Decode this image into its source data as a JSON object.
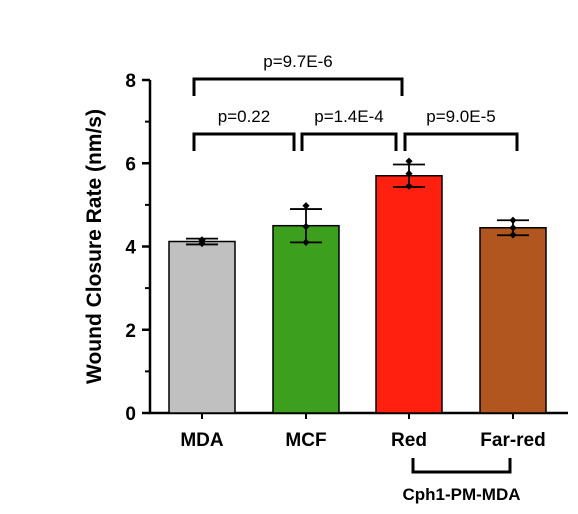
{
  "chart_data": {
    "type": "bar",
    "categories": [
      "MDA",
      "MCF",
      "Red",
      "Far-red"
    ],
    "values": [
      4.12,
      4.5,
      5.7,
      4.45
    ],
    "errors": [
      0.07,
      0.4,
      0.27,
      0.18
    ],
    "points": [
      [
        4.07,
        4.12,
        4.16
      ],
      [
        4.1,
        4.48,
        4.98
      ],
      [
        5.45,
        5.75,
        6.05
      ],
      [
        4.28,
        4.45,
        4.63
      ]
    ],
    "colors": [
      "#c0c0c0",
      "#3d9f1e",
      "#ff2010",
      "#b0561e"
    ],
    "ylabel": "Wound Closure Rate (nm/s)",
    "ylim": [
      0,
      8
    ],
    "yticks": [
      0,
      2,
      4,
      6,
      8
    ],
    "grid": false,
    "comparisons": [
      {
        "from": 0,
        "to": 1,
        "label": "p=0.22",
        "level": 0
      },
      {
        "from": 1,
        "to": 2,
        "label": "p=1.4E-4",
        "level": 0
      },
      {
        "from": 2,
        "to": 3,
        "label": "p=9.0E-5",
        "level": 0
      },
      {
        "from": 0,
        "to": 2,
        "label": "p=9.7E-6",
        "level": 1
      }
    ],
    "group_bracket": {
      "from": 2,
      "to": 3,
      "label": "Cph1-PM-MDA"
    }
  }
}
